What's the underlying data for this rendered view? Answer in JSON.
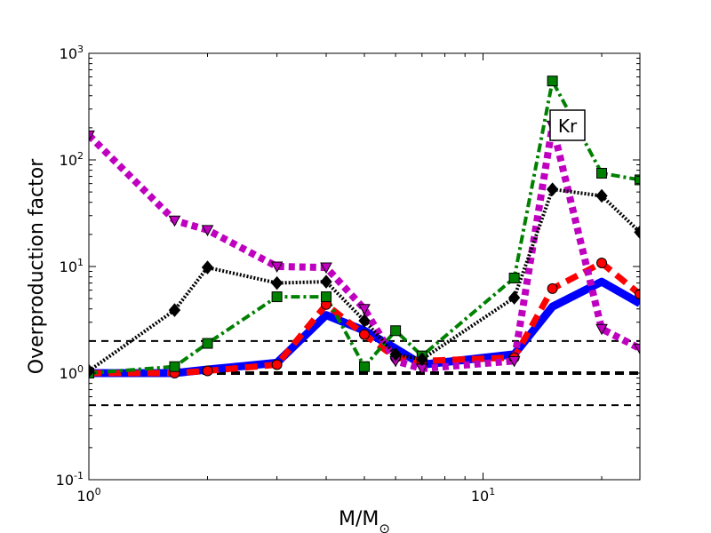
{
  "chart_data": {
    "type": "line",
    "title": "",
    "xlabel": "M/M⊙",
    "ylabel": "Overproduction factor",
    "xscale": "log",
    "yscale": "log",
    "xlim": [
      1,
      25
    ],
    "ylim": [
      0.1,
      1000
    ],
    "x_ticks": [
      {
        "value": 1,
        "label": "10⁰",
        "base": "10",
        "exp": "0"
      },
      {
        "value": 10,
        "label": "10¹",
        "base": "10",
        "exp": "1"
      }
    ],
    "y_ticks": [
      {
        "value": 0.1,
        "label": "10⁻¹",
        "base": "10",
        "exp": "-1"
      },
      {
        "value": 1,
        "label": "10⁰",
        "base": "10",
        "exp": "0"
      },
      {
        "value": 10,
        "label": "10¹",
        "base": "10",
        "exp": "1"
      },
      {
        "value": 100,
        "label": "10²",
        "base": "10",
        "exp": "2"
      },
      {
        "value": 1000,
        "label": "10³",
        "base": "10",
        "exp": "3"
      }
    ],
    "annotation": "Kr",
    "reference_lines": [
      {
        "y": 2,
        "style": "dashed-thin",
        "color": "#000000"
      },
      {
        "y": 1,
        "style": "dashed-thick",
        "color": "#000000"
      },
      {
        "y": 0.5,
        "style": "dashed-thin",
        "color": "#000000"
      }
    ],
    "series": [
      {
        "style": "solid",
        "color": "#0000ff",
        "marker": "none",
        "x": [
          1,
          1.65,
          2,
          3,
          4,
          5,
          6,
          7,
          12,
          15,
          20,
          25
        ],
        "y": [
          1.0,
          1.0,
          1.08,
          1.25,
          3.5,
          2.5,
          1.7,
          1.2,
          1.5,
          4.2,
          7.2,
          4.5
        ]
      },
      {
        "style": "dashed",
        "color": "#ff0000",
        "marker": "circle",
        "x": [
          1,
          1.65,
          2,
          3,
          4,
          5,
          6,
          7,
          12,
          15,
          20,
          25
        ],
        "y": [
          1.0,
          1.0,
          1.05,
          1.2,
          4.4,
          2.3,
          1.4,
          1.3,
          1.4,
          6.2,
          10.8,
          5.5
        ]
      },
      {
        "style": "dotted",
        "color": "#bf00bf",
        "marker": "triangle-down",
        "x": [
          1,
          1.65,
          2,
          3,
          4,
          5,
          6,
          7,
          12,
          15,
          20,
          25
        ],
        "y": [
          170,
          27,
          22,
          10,
          9.8,
          4,
          1.3,
          1.1,
          1.3,
          210,
          2.6,
          1.7
        ]
      },
      {
        "style": "dashdot",
        "color": "#008000",
        "marker": "square",
        "x": [
          1,
          1.65,
          2,
          3,
          4,
          5,
          6,
          7,
          12,
          15,
          20,
          25
        ],
        "y": [
          1.0,
          1.15,
          1.9,
          5.2,
          5.2,
          1.15,
          2.5,
          1.45,
          7.8,
          550,
          75,
          65
        ]
      },
      {
        "style": "hatched",
        "color": "#000000",
        "marker": "diamond",
        "x": [
          1,
          1.65,
          2,
          3,
          4,
          5,
          6,
          7,
          12,
          15,
          20,
          25
        ],
        "y": [
          1.05,
          3.9,
          9.8,
          7.0,
          7.2,
          3.1,
          1.5,
          1.35,
          5.1,
          53,
          46,
          21
        ]
      }
    ]
  }
}
